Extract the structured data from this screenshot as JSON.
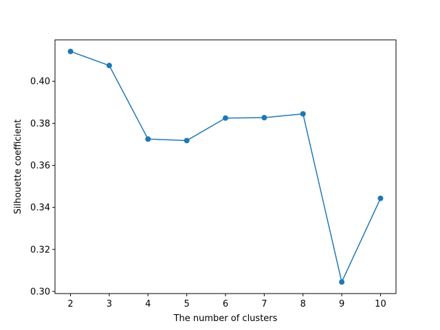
{
  "chart_data": {
    "type": "line",
    "title": "",
    "xlabel": "The number of clusters",
    "ylabel": "Silhouette coefficient",
    "x": [
      2,
      3,
      4,
      5,
      6,
      7,
      8,
      9,
      10
    ],
    "series": [
      {
        "values": [
          0.4142,
          0.4075,
          0.3725,
          0.3718,
          0.3825,
          0.3827,
          0.3845,
          0.3045,
          0.3443
        ]
      }
    ],
    "xticks": [
      "2",
      "3",
      "4",
      "5",
      "6",
      "7",
      "8",
      "9",
      "10"
    ],
    "yticks": [
      "0.30",
      "0.32",
      "0.34",
      "0.36",
      "0.38",
      "0.40"
    ],
    "ytick_values": [
      0.3,
      0.32,
      0.34,
      0.36,
      0.38,
      0.4
    ],
    "xlim": [
      1.6,
      10.4
    ],
    "ylim": [
      0.299,
      0.4197
    ],
    "grid": false,
    "line_color": "#1f77b4",
    "marker": "circle"
  }
}
